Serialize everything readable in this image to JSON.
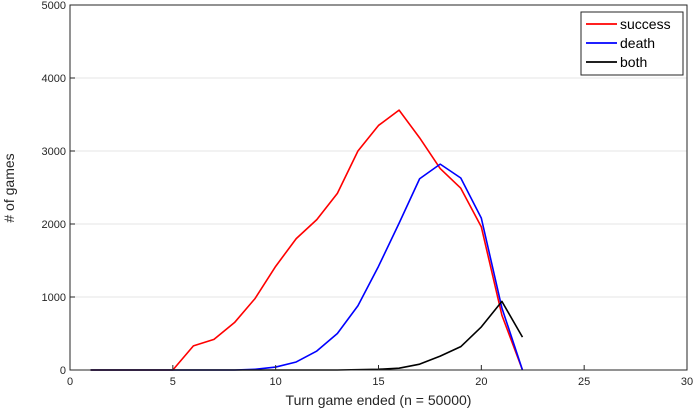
{
  "chart_data": {
    "type": "line",
    "xlabel": "Turn game ended (n = 50000)",
    "ylabel": "# of games",
    "xlim": [
      0,
      30
    ],
    "ylim": [
      0,
      5000
    ],
    "xticks": [
      0,
      5,
      10,
      15,
      20,
      25,
      30
    ],
    "yticks": [
      0,
      1000,
      2000,
      3000,
      4000,
      5000
    ],
    "grid": "horizontal",
    "legend_position": "top-right",
    "x": [
      1,
      2,
      3,
      4,
      5,
      6,
      7,
      8,
      9,
      10,
      11,
      12,
      13,
      14,
      15,
      16,
      17,
      18,
      19,
      20,
      21,
      22
    ],
    "series": [
      {
        "name": "success",
        "color": "#ff0000",
        "values": [
          0,
          0,
          0,
          0,
          0,
          330,
          420,
          650,
          980,
          1420,
          1800,
          2060,
          2420,
          3000,
          3350,
          3560,
          3180,
          2760,
          2490,
          1960,
          750,
          0
        ]
      },
      {
        "name": "death",
        "color": "#0000ff",
        "values": [
          0,
          0,
          0,
          0,
          0,
          0,
          0,
          0,
          10,
          40,
          110,
          260,
          500,
          880,
          1420,
          2010,
          2620,
          2820,
          2630,
          2080,
          850,
          0
        ]
      },
      {
        "name": "both",
        "color": "#000000",
        "values": [
          0,
          0,
          0,
          0,
          0,
          0,
          0,
          0,
          0,
          0,
          0,
          0,
          0,
          5,
          10,
          25,
          80,
          190,
          320,
          590,
          940,
          450
        ]
      }
    ]
  }
}
